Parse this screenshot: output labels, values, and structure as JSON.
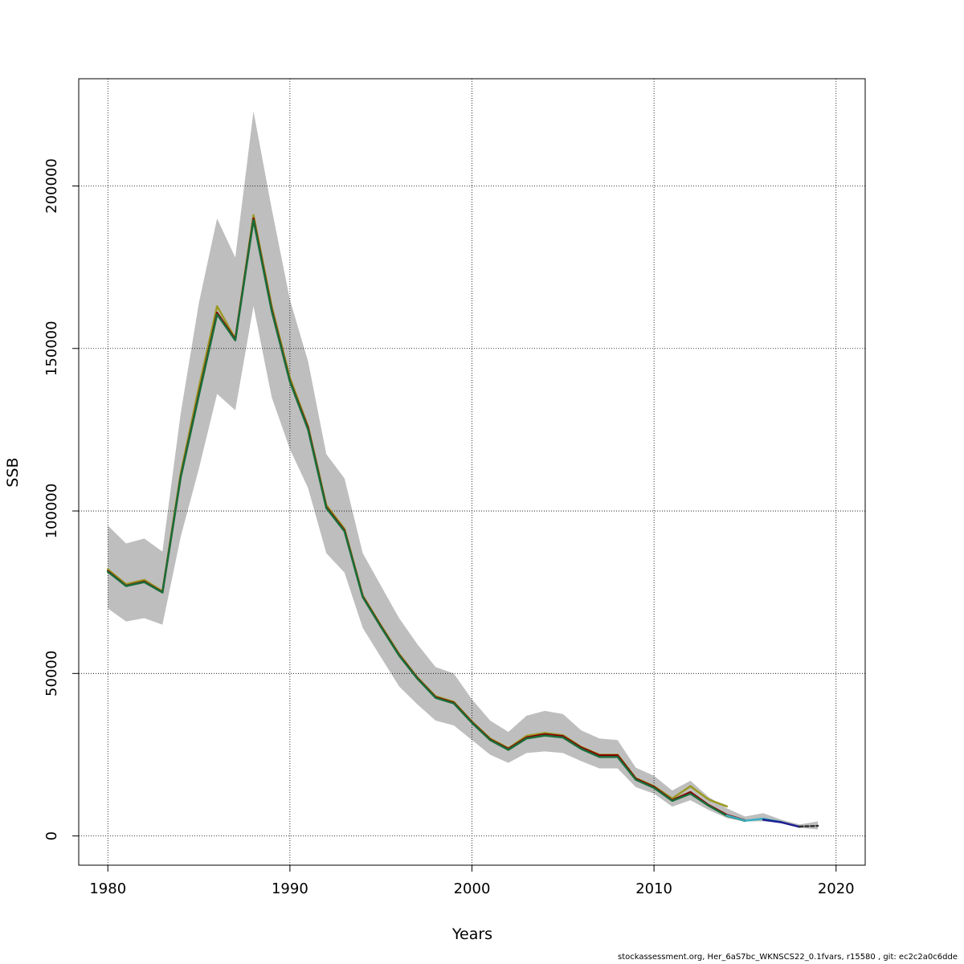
{
  "chart_data": {
    "type": "line",
    "xlabel": "Years",
    "ylabel": "SSB",
    "xlim": [
      1978.4,
      2021.6
    ],
    "ylim": [
      -9000,
      233000
    ],
    "x_ticks": [
      1980,
      1990,
      2000,
      2010,
      2020
    ],
    "y_ticks": [
      0,
      50000,
      100000,
      150000,
      200000
    ],
    "grid": true,
    "confidence_band": {
      "color": "#bebebe",
      "x": [
        1980,
        1981,
        1982,
        1983,
        1984,
        1985,
        1986,
        1987,
        1988,
        1989,
        1990,
        1991,
        1992,
        1993,
        1994,
        1995,
        1996,
        1997,
        1998,
        1999,
        2000,
        2001,
        2002,
        2003,
        2004,
        2005,
        2006,
        2007,
        2008,
        2009,
        2010,
        2011,
        2012,
        2013,
        2014,
        2015,
        2016,
        2017,
        2018,
        2019
      ],
      "lower": [
        70000,
        66000,
        67000,
        65000,
        92000,
        113000,
        136000,
        131000,
        163000,
        135000,
        119000,
        107000,
        87000,
        81000,
        64000,
        55000,
        46000,
        40500,
        35500,
        34000,
        29500,
        25000,
        22500,
        25500,
        26000,
        25500,
        23000,
        20800,
        20800,
        15000,
        13000,
        9000,
        11000,
        8000,
        5500,
        4500,
        4500,
        4000,
        2500,
        2000
      ],
      "upper": [
        95500,
        90000,
        91500,
        87500,
        130000,
        164000,
        190000,
        178000,
        223000,
        193000,
        165000,
        146000,
        117500,
        110000,
        87000,
        77000,
        67000,
        59000,
        52000,
        50000,
        42000,
        35500,
        32000,
        37000,
        38500,
        37500,
        32500,
        30000,
        29500,
        21000,
        18500,
        14000,
        17000,
        12000,
        8500,
        6000,
        7000,
        5000,
        3500,
        4500
      ]
    },
    "series": [
      {
        "color": "#9a9a24",
        "x": [
          1980,
          1981,
          1982,
          1983,
          1984,
          1985,
          1986,
          1987,
          1988,
          1989,
          1990,
          1991,
          1992,
          1993,
          1994,
          1995,
          1996,
          1997,
          1998,
          1999,
          2000,
          2001,
          2002,
          2003,
          2004,
          2005,
          2006,
          2007,
          2008,
          2009,
          2010,
          2011,
          2012,
          2013,
          2014
        ],
        "values": [
          82000,
          77500,
          78800,
          75300,
          111500,
          138000,
          163000,
          153000,
          191000,
          163000,
          141000,
          126000,
          101800,
          94500,
          74000,
          64800,
          56000,
          48800,
          43000,
          41300,
          35200,
          30000,
          27000,
          30800,
          31700,
          31000,
          27400,
          25000,
          25000,
          17800,
          15300,
          11500,
          15300,
          11200,
          9100
        ]
      },
      {
        "color": "#8b0000",
        "x": [
          1980,
          1981,
          1982,
          1983,
          1984,
          1985,
          1986,
          1987,
          1988,
          1989,
          1990,
          1991,
          1992,
          1993,
          1994,
          1995,
          1996,
          1997,
          1998,
          1999,
          2000,
          2001,
          2002,
          2003,
          2004,
          2005,
          2006,
          2007,
          2008,
          2009,
          2010,
          2011,
          2012,
          2013,
          2014,
          2015
        ],
        "values": [
          81500,
          77000,
          78300,
          75000,
          110500,
          136000,
          161000,
          152800,
          190000,
          162000,
          140000,
          125500,
          101200,
          94000,
          73700,
          64500,
          55700,
          48600,
          42700,
          41000,
          35000,
          29700,
          26800,
          30300,
          31300,
          30700,
          27200,
          24800,
          24800,
          17600,
          15100,
          11000,
          13500,
          9500,
          6500,
          4800
        ]
      },
      {
        "color": "#1a6e3a",
        "x": [
          1980,
          1981,
          1982,
          1983,
          1984,
          1985,
          1986,
          1987,
          1988,
          1989,
          1990,
          1991,
          1992,
          1993,
          1994,
          1995,
          1996,
          1997,
          1998,
          1999,
          2000,
          2001,
          2002,
          2003,
          2004,
          2005,
          2006,
          2007,
          2008,
          2009,
          2010,
          2011,
          2012,
          2013,
          2014,
          2015
        ],
        "values": [
          81300,
          76900,
          78100,
          74900,
          110300,
          135600,
          160500,
          152500,
          189500,
          161500,
          139800,
          125000,
          100900,
          93700,
          73500,
          64300,
          55500,
          48400,
          42500,
          40800,
          34800,
          29500,
          26500,
          30000,
          30900,
          30300,
          26800,
          24300,
          24300,
          17300,
          14800,
          10800,
          13000,
          9300,
          6200,
          4600
        ]
      },
      {
        "color": "#3aaec0",
        "x": [
          2014,
          2015,
          2016,
          2017
        ],
        "values": [
          6300,
          4700,
          5300,
          4300
        ]
      },
      {
        "color": "#1e1e90",
        "x": [
          2016,
          2017,
          2018
        ],
        "values": [
          5000,
          4200,
          2800
        ]
      },
      {
        "color": "#333333",
        "dashed": true,
        "x": [
          2018,
          2019
        ],
        "values": [
          2900,
          3100
        ]
      }
    ]
  },
  "footer": {
    "credit": "stockassessment.org, Her_6aS7bc_WKNSCS22_0.1fvars, r15580 , git: ec2c2a0c6dde"
  }
}
